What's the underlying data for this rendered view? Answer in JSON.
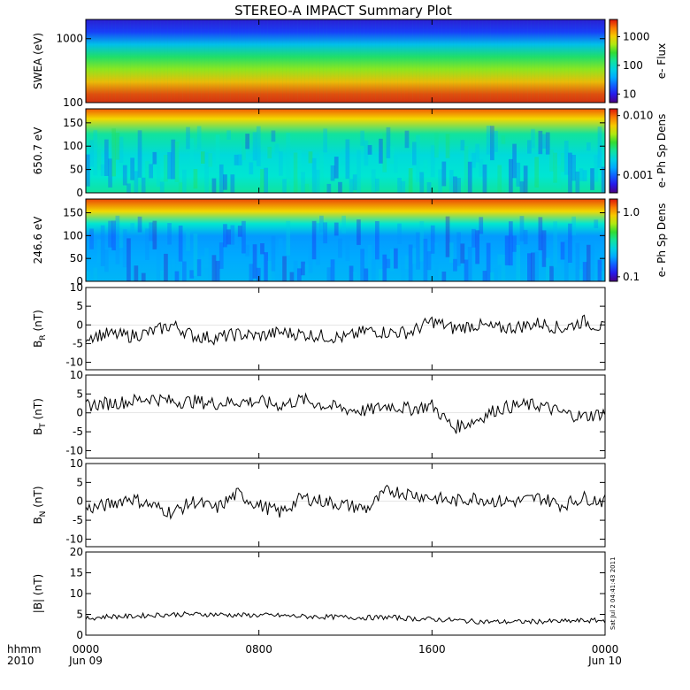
{
  "title": "STEREO-A IMPACT Summary Plot",
  "stamp": "Sat Jul  2 04:41:43 2011",
  "x_axis": {
    "corner_top": "hhmm",
    "corner_bottom": "2010",
    "ticks": [
      {
        "label": "0000",
        "sub": "Jun 09",
        "hour": 0
      },
      {
        "label": "0800",
        "sub": "",
        "hour": 8
      },
      {
        "label": "1600",
        "sub": "",
        "hour": 16
      },
      {
        "label": "0000",
        "sub": "Jun 10",
        "hour": 24
      }
    ]
  },
  "chart_data": [
    {
      "type": "heatmap",
      "ylabel": "SWEA (eV)",
      "y_scale": "log",
      "ylim": [
        100,
        2000
      ],
      "yticks": [
        {
          "label": "1000",
          "v": 1000
        },
        {
          "label": "100",
          "v": 100
        }
      ],
      "colorbar": {
        "label": "e- Flux",
        "scale": "log",
        "range": [
          5,
          4000
        ],
        "ticks": [
          {
            "label": "1000",
            "v": 1000
          },
          {
            "label": "100",
            "v": 100
          },
          {
            "label": "10",
            "v": 10
          }
        ]
      },
      "description_rows": [
        {
          "y": 100,
          "level": 0.97
        },
        {
          "y": 130,
          "level": 0.92
        },
        {
          "y": 180,
          "level": 0.82
        },
        {
          "y": 250,
          "level": 0.68
        },
        {
          "y": 350,
          "level": 0.55
        },
        {
          "y": 500,
          "level": 0.45
        },
        {
          "y": 700,
          "level": 0.35
        },
        {
          "y": 1000,
          "level": 0.25
        },
        {
          "y": 1400,
          "level": 0.12
        },
        {
          "y": 2000,
          "level": 0.03
        }
      ]
    },
    {
      "type": "heatmap",
      "ylabel": "650.7 eV",
      "ylim": [
        0,
        180
      ],
      "yticks": [
        {
          "label": "150",
          "v": 150
        },
        {
          "label": "100",
          "v": 100
        },
        {
          "label": "50",
          "v": 50
        },
        {
          "label": "0",
          "v": 0
        }
      ],
      "colorbar": {
        "label": "e- Ph Sp Dens",
        "scale": "log",
        "range": [
          0.0005,
          0.013
        ],
        "ticks": [
          {
            "label": "0.010",
            "v": 0.01
          },
          {
            "label": "0.001",
            "v": 0.001
          }
        ]
      }
    },
    {
      "type": "heatmap",
      "ylabel": "246.6 eV",
      "ylim": [
        0,
        180
      ],
      "yticks": [
        {
          "label": "150",
          "v": 150
        },
        {
          "label": "100",
          "v": 100
        },
        {
          "label": "50",
          "v": 50
        },
        {
          "label": "0",
          "v": 0
        }
      ],
      "colorbar": {
        "label": "e- Ph Sp Dens",
        "scale": "log",
        "range": [
          0.085,
          1.6
        ],
        "ticks": [
          {
            "label": "1.0",
            "v": 1.0
          },
          {
            "label": "0.1",
            "v": 0.1
          }
        ]
      }
    },
    {
      "type": "line",
      "ylabel_main": "B",
      "ylabel_sub": "R",
      "ylabel_tail": " (nT)",
      "ylim": [
        -12,
        10
      ],
      "yticks": [
        {
          "label": "10",
          "v": 10
        },
        {
          "label": "5",
          "v": 5
        },
        {
          "label": "0",
          "v": 0
        },
        {
          "label": "-5",
          "v": -5
        },
        {
          "label": "-10",
          "v": -10
        }
      ],
      "x": [
        0,
        1,
        2,
        3,
        4,
        5,
        6,
        7,
        8,
        9,
        10,
        11,
        12,
        13,
        14,
        15,
        16,
        17,
        18,
        19,
        20,
        21,
        22,
        23,
        24
      ],
      "y": [
        -3,
        -2.5,
        -3,
        -2,
        0,
        -3,
        -3.5,
        -2.5,
        -3,
        -2,
        -2.5,
        -3,
        -3.5,
        -1.5,
        -2,
        -2,
        1,
        -1,
        0,
        -1,
        -0.5,
        0.5,
        -1,
        1,
        -1
      ]
    },
    {
      "type": "line",
      "ylabel_main": "B",
      "ylabel_sub": "T",
      "ylabel_tail": " (nT)",
      "ylim": [
        -12,
        10
      ],
      "yticks": [
        {
          "label": "10",
          "v": 10
        },
        {
          "label": "5",
          "v": 5
        },
        {
          "label": "0",
          "v": 0
        },
        {
          "label": "-5",
          "v": -5
        },
        {
          "label": "-10",
          "v": -10
        }
      ],
      "x": [
        0,
        1,
        2,
        3,
        4,
        5,
        6,
        7,
        8,
        9,
        10,
        11,
        12,
        13,
        14,
        15,
        16,
        17,
        18,
        19,
        20,
        21,
        22,
        23,
        24
      ],
      "y": [
        2,
        2.5,
        3,
        4,
        3,
        3,
        2.5,
        3,
        3,
        2,
        3.5,
        2,
        1,
        0.5,
        2,
        1,
        2,
        -4,
        -2,
        1,
        2,
        2,
        0,
        -1,
        0
      ]
    },
    {
      "type": "line",
      "ylabel_main": "B",
      "ylabel_sub": "N",
      "ylabel_tail": " (nT)",
      "ylim": [
        -12,
        10
      ],
      "yticks": [
        {
          "label": "10",
          "v": 10
        },
        {
          "label": "5",
          "v": 5
        },
        {
          "label": "0",
          "v": 0
        },
        {
          "label": "-5",
          "v": -5
        },
        {
          "label": "-10",
          "v": -10
        }
      ],
      "x": [
        0,
        1,
        2,
        3,
        4,
        5,
        6,
        7,
        8,
        9,
        10,
        11,
        12,
        13,
        14,
        15,
        16,
        17,
        18,
        19,
        20,
        21,
        22,
        23,
        24
      ],
      "y": [
        -2,
        -1,
        1,
        -1,
        -3,
        0,
        -2,
        2,
        -1,
        -3,
        1,
        0,
        -1,
        -2,
        3,
        2,
        1,
        0,
        1,
        0,
        0,
        1,
        -1,
        1,
        0
      ]
    },
    {
      "type": "line",
      "ylabel_main": "|B|",
      "ylabel_sub": "",
      "ylabel_tail": " (nT)",
      "ylim": [
        0,
        20
      ],
      "yticks": [
        {
          "label": "20",
          "v": 20
        },
        {
          "label": "15",
          "v": 15
        },
        {
          "label": "10",
          "v": 10
        },
        {
          "label": "5",
          "v": 5
        },
        {
          "label": "0",
          "v": 0
        }
      ],
      "x": [
        0,
        1,
        2,
        3,
        4,
        5,
        6,
        7,
        8,
        9,
        10,
        11,
        12,
        13,
        14,
        15,
        16,
        17,
        18,
        19,
        20,
        21,
        22,
        23,
        24
      ],
      "y": [
        4,
        4.5,
        4.5,
        4.8,
        5,
        5,
        5,
        4.8,
        4.8,
        4.7,
        4.5,
        4.4,
        4.3,
        4.2,
        4.3,
        4,
        3.8,
        3.6,
        3.3,
        3.2,
        3.2,
        3.3,
        3.3,
        3.5,
        3.5
      ]
    }
  ]
}
